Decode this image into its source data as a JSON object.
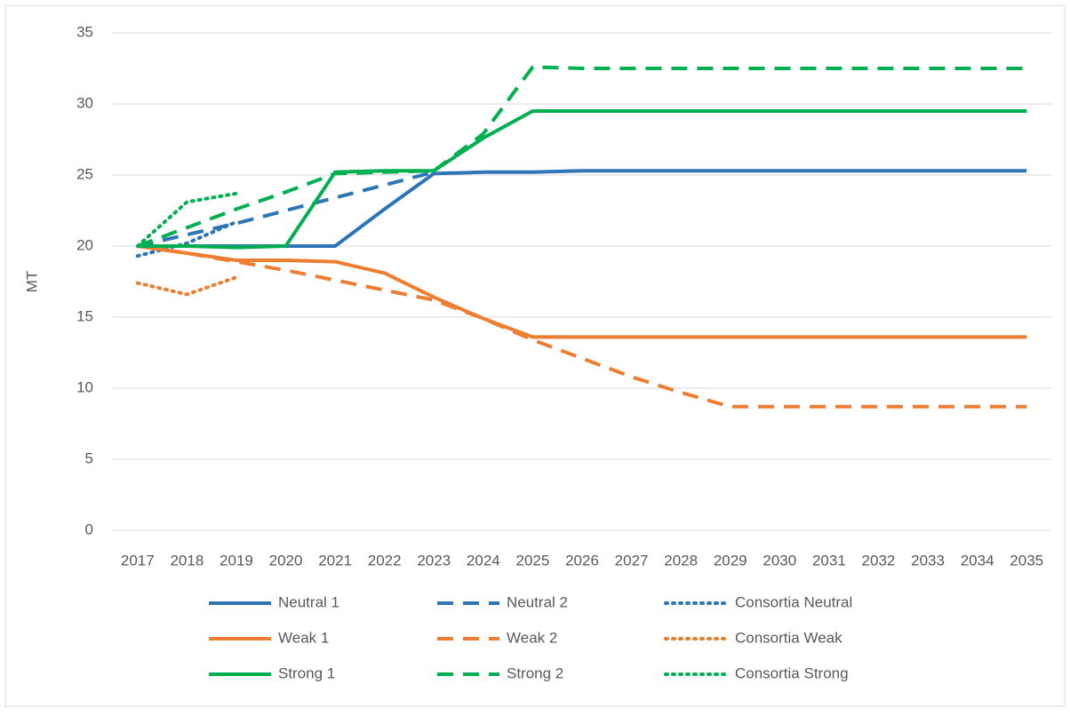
{
  "chart_data": {
    "type": "line",
    "y_label": "MT",
    "categories": [
      "2017",
      "2018",
      "2019",
      "2020",
      "2021",
      "2022",
      "2023",
      "2024",
      "2025",
      "2026",
      "2027",
      "2028",
      "2029",
      "2030",
      "2031",
      "2032",
      "2033",
      "2034",
      "2035"
    ],
    "ylim": [
      0,
      35
    ],
    "yticks": [
      0,
      5,
      10,
      15,
      20,
      25,
      30,
      35
    ],
    "grid": true,
    "legend": "bottom",
    "legend_columns": 3,
    "series": [
      {
        "name": "Neutral 1",
        "color": "#2e75b6",
        "dash": "solid",
        "values": [
          20,
          20,
          20,
          20,
          20,
          22.6,
          25.1,
          25.2,
          25.2,
          25.3,
          25.3,
          25.3,
          25.3,
          25.3,
          25.3,
          25.3,
          25.3,
          25.3,
          25.3
        ]
      },
      {
        "name": "Neutral 2",
        "color": "#2e75b6",
        "dash": "dash",
        "values": [
          20,
          20.8,
          21.6,
          22.5,
          23.4,
          24.3,
          25.2,
          null,
          null,
          null,
          null,
          null,
          null,
          null,
          null,
          null,
          null,
          null,
          null
        ]
      },
      {
        "name": "Consortia Neutral",
        "color": "#2e75b6",
        "dash": "dot",
        "values": [
          19.3,
          20.2,
          21.7,
          null,
          null,
          null,
          null,
          null,
          null,
          null,
          null,
          null,
          null,
          null,
          null,
          null,
          null,
          null,
          null
        ]
      },
      {
        "name": "Weak 1",
        "color": "#ed7d31",
        "dash": "solid",
        "values": [
          20,
          19.5,
          19,
          19,
          18.9,
          18.1,
          16.4,
          14.9,
          13.6,
          13.6,
          13.6,
          13.6,
          13.6,
          13.6,
          13.6,
          13.6,
          13.6,
          13.6,
          13.6
        ]
      },
      {
        "name": "Weak 2",
        "color": "#ed7d31",
        "dash": "dash",
        "values": [
          20,
          19.5,
          18.9,
          18.3,
          17.6,
          16.9,
          16.2,
          14.9,
          13.4,
          12.1,
          10.8,
          9.7,
          8.7,
          8.7,
          8.7,
          8.7,
          8.7,
          8.7,
          8.7
        ]
      },
      {
        "name": "Consortia Weak",
        "color": "#ed7d31",
        "dash": "dot",
        "values": [
          17.4,
          16.6,
          17.8,
          null,
          null,
          null,
          null,
          null,
          null,
          null,
          null,
          null,
          null,
          null,
          null,
          null,
          null,
          null,
          null
        ]
      },
      {
        "name": "Strong 1",
        "color": "#00b050",
        "dash": "solid",
        "values": [
          20,
          20,
          19.9,
          20,
          25.2,
          25.3,
          25.3,
          27.6,
          29.5,
          29.5,
          29.5,
          29.5,
          29.5,
          29.5,
          29.5,
          29.5,
          29.5,
          29.5,
          29.5
        ]
      },
      {
        "name": "Strong 2",
        "color": "#00b050",
        "dash": "dash",
        "values": [
          20,
          21.3,
          22.6,
          23.8,
          25.1,
          25.2,
          25.3,
          27.9,
          32.6,
          32.5,
          32.5,
          32.5,
          32.5,
          32.5,
          32.5,
          32.5,
          32.5,
          32.5,
          32.5
        ]
      },
      {
        "name": "Consortia Strong",
        "color": "#00b050",
        "dash": "dot",
        "values": [
          20,
          23.1,
          23.7,
          null,
          null,
          null,
          null,
          null,
          null,
          null,
          null,
          null,
          null,
          null,
          null,
          null,
          null,
          null,
          null
        ]
      }
    ]
  }
}
